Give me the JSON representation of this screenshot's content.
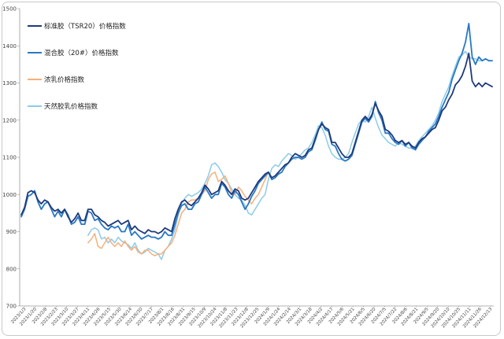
{
  "chart_data": {
    "type": "line",
    "title": "",
    "xlabel": "",
    "ylabel": "",
    "ylim": [
      700,
      1500
    ],
    "yticks": [
      700,
      800,
      900,
      1000,
      1100,
      1200,
      1300,
      1400,
      1500
    ],
    "grid": false,
    "legend_position": "top-left",
    "x_tick_labels": [
      "2023/1/3",
      "2023/1/20",
      "2023/2/8",
      "2023/2/23",
      "2023/3/10",
      "2023/3/27",
      "2023/4/11",
      "2023/4/26",
      "2023/5/15",
      "2023/5/30",
      "2023/6/14",
      "2023/6/30",
      "2023/7/17",
      "2023/8/1",
      "2023/8/16",
      "2023/8/31",
      "2023/9/15",
      "2023/10/9",
      "2023/10/24",
      "2023/11/8",
      "2023/11/23",
      "2023/12/8",
      "2023/12/25",
      "2024/1/9",
      "2024/1/24",
      "2024/2/14",
      "2024/3/1",
      "2024/3/18",
      "2024/4/2",
      "2024/4/17",
      "2024/5/6",
      "2024/5/21",
      "2024/6/5",
      "2024/6/20",
      "2024/7/5",
      "2024/7/22",
      "2024/8/6",
      "2024/8/21",
      "2024/9/5",
      "2024/9/20",
      "2024/10/10",
      "2024/10/25",
      "2024/11/11",
      "2024/11/26",
      "2024/12/13"
    ],
    "series": [
      {
        "name": "标准胶（TSR20）价格指数",
        "color": "#1f3a7a",
        "width": 1.8,
        "start_index": 0,
        "values": [
          945,
          965,
          1005,
          1010,
          1005,
          985,
          975,
          985,
          980,
          965,
          955,
          960,
          950,
          960,
          940,
          925,
          935,
          950,
          930,
          930,
          960,
          960,
          945,
          940,
          930,
          925,
          915,
          920,
          925,
          930,
          920,
          925,
          930,
          905,
          915,
          905,
          900,
          895,
          905,
          900,
          900,
          895,
          900,
          910,
          905,
          900,
          935,
          960,
          980,
          985,
          975,
          970,
          980,
          990,
          1005,
          1025,
          1015,
          1000,
          1005,
          1010,
          1035,
          1025,
          1010,
          1000,
          1015,
          1010,
          990,
          985,
          990,
          1005,
          1020,
          1035,
          1045,
          1055,
          1060,
          1045,
          1050,
          1060,
          1070,
          1080,
          1085,
          1100,
          1110,
          1105,
          1100,
          1105,
          1120,
          1125,
          1150,
          1175,
          1190,
          1180,
          1175,
          1140,
          1140,
          1125,
          1110,
          1100,
          1100,
          1110,
          1140,
          1170,
          1200,
          1210,
          1200,
          1215,
          1245,
          1225,
          1210,
          1175,
          1170,
          1160,
          1145,
          1140,
          1145,
          1135,
          1140,
          1130,
          1125,
          1140,
          1150,
          1155,
          1165,
          1175,
          1180,
          1200,
          1225,
          1235,
          1255,
          1270,
          1295,
          1305,
          1320,
          1345,
          1380,
          1305,
          1290,
          1300,
          1290,
          1300,
          1295,
          1290
        ]
      },
      {
        "name": "混合胶（20#）价格指数",
        "color": "#2878c4",
        "width": 1.8,
        "start_index": 0,
        "values": [
          940,
          960,
          995,
          1000,
          1010,
          980,
          960,
          975,
          980,
          960,
          940,
          955,
          940,
          960,
          945,
          920,
          925,
          940,
          920,
          920,
          955,
          950,
          930,
          935,
          920,
          910,
          905,
          915,
          910,
          915,
          900,
          900,
          920,
          890,
          900,
          890,
          880,
          885,
          890,
          885,
          885,
          880,
          885,
          900,
          890,
          890,
          920,
          950,
          970,
          975,
          960,
          960,
          975,
          980,
          1000,
          1020,
          1005,
          990,
          1000,
          1000,
          1030,
          1020,
          1000,
          990,
          1010,
          1000,
          980,
          960,
          975,
          995,
          1010,
          1030,
          1040,
          1050,
          1060,
          1040,
          1045,
          1055,
          1060,
          1075,
          1085,
          1095,
          1100,
          1100,
          1095,
          1100,
          1115,
          1120,
          1145,
          1175,
          1195,
          1175,
          1170,
          1135,
          1130,
          1110,
          1095,
          1090,
          1095,
          1105,
          1135,
          1165,
          1195,
          1205,
          1195,
          1210,
          1250,
          1220,
          1200,
          1165,
          1165,
          1150,
          1140,
          1135,
          1145,
          1130,
          1140,
          1125,
          1120,
          1135,
          1145,
          1155,
          1170,
          1180,
          1190,
          1210,
          1235,
          1255,
          1275,
          1310,
          1335,
          1360,
          1380,
          1410,
          1460,
          1370,
          1350,
          1370,
          1360,
          1365,
          1360,
          1360
        ]
      },
      {
        "name": "浓乳价格指数",
        "color": "#f5b07a",
        "width": 1.5,
        "start_index": 20,
        "values": [
          870,
          880,
          895,
          860,
          855,
          870,
          885,
          870,
          860,
          870,
          860,
          875,
          860,
          850,
          860,
          845,
          840,
          850,
          850,
          840,
          835,
          840,
          840,
          850,
          860,
          870,
          890,
          920,
          950,
          960,
          980,
          985,
          985,
          990,
          1000,
          1010,
          1040,
          1055,
          1060,
          1035,
          1040,
          1050,
          1030,
          1005,
          1000,
          1020,
          1010,
          995,
          985,
          975,
          990,
          1000,
          1020,
          1040,
          1060
        ]
      },
      {
        "name": "天然胶乳价格指数",
        "color": "#8ccbe8",
        "width": 1.5,
        "start_index": 20,
        "values": [
          890,
          905,
          910,
          905,
          880,
          885,
          870,
          880,
          870,
          885,
          875,
          870,
          865,
          855,
          870,
          850,
          840,
          845,
          855,
          850,
          845,
          840,
          825,
          850,
          860,
          880,
          905,
          945,
          975,
          990,
          1000,
          995,
          1000,
          1005,
          1015,
          1030,
          1050,
          1080,
          1085,
          1075,
          1060,
          1040,
          1030,
          1015,
          1000,
          990,
          985,
          970,
          950,
          945,
          960,
          975,
          990,
          1000,
          1040,
          1070,
          1080,
          1075,
          1090,
          1100,
          1110,
          1105,
          1095,
          1100,
          1110,
          1120,
          1125,
          1140,
          1160,
          1185,
          1180,
          1160,
          1130,
          1110,
          1100,
          1095,
          1095,
          1100,
          1110,
          1140,
          1165,
          1190,
          1200,
          1195,
          1210,
          1235,
          1205,
          1180,
          1160,
          1150,
          1140,
          1135,
          1130,
          1140,
          1135,
          1130,
          1125,
          1125,
          1130,
          1145,
          1155,
          1165,
          1175,
          1185,
          1200,
          1220,
          1250,
          1270,
          1290,
          1320,
          1345,
          1370,
          1375,
          1385,
          1370,
          1365,
          1365,
          1360,
          1360
        ]
      }
    ]
  }
}
